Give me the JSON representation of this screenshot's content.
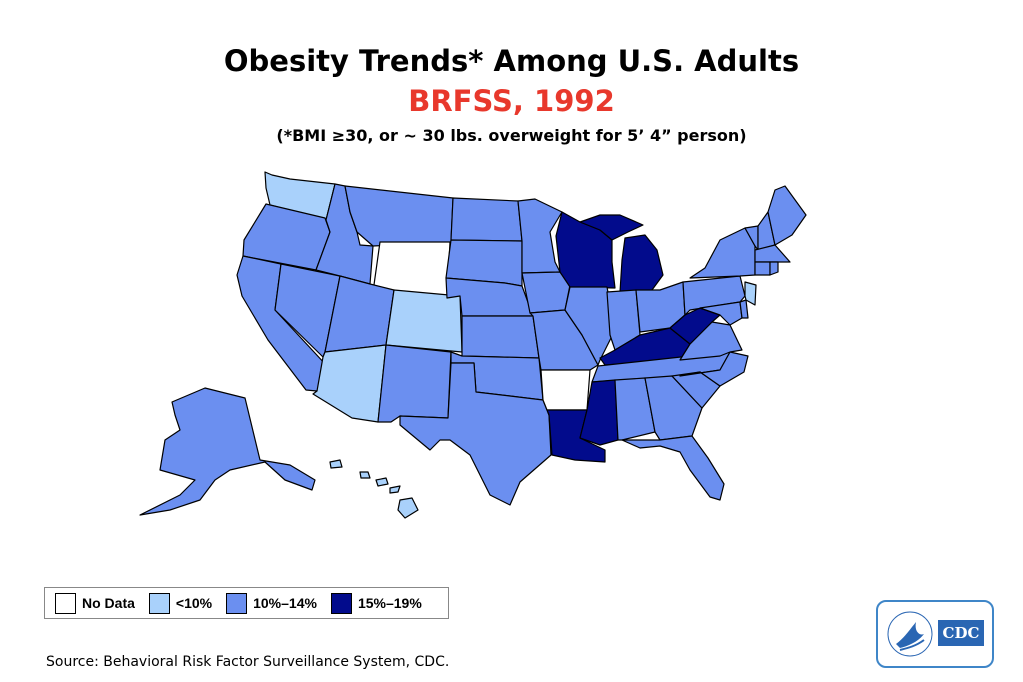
{
  "title": "Obesity Trends* Among U.S. Adults",
  "subtitle": "BRFSS, 1992",
  "note": "(*BMI ≥30, or ~ 30 lbs. overweight for 5’ 4” person)",
  "colors": {
    "no_data": "#ffffff",
    "lt10": "#a9d1fb",
    "c10_14": "#6b8ff0",
    "c15_19": "#020b8c",
    "title_red": "#e8382c",
    "border": "#000000"
  },
  "legend": [
    {
      "key": "no_data",
      "label": "No Data",
      "color": "#ffffff"
    },
    {
      "key": "lt10",
      "label": "<10%",
      "color": "#a9d1fb"
    },
    {
      "key": "c10_14",
      "label": "10%–14%",
      "color": "#6b8ff0"
    },
    {
      "key": "c15_19",
      "label": "15%–19%",
      "color": "#020b8c"
    }
  ],
  "map_data": {
    "states": {
      "WA": "lt10",
      "OR": "c10_14",
      "CA": "c10_14",
      "NV": "c10_14",
      "ID": "c10_14",
      "MT": "c10_14",
      "WY": "no_data",
      "UT": "c10_14",
      "AZ": "lt10",
      "CO": "lt10",
      "NM": "c10_14",
      "ND": "c10_14",
      "SD": "c10_14",
      "NE": "c10_14",
      "KS": "c10_14",
      "OK": "c10_14",
      "TX": "c10_14",
      "MN": "c10_14",
      "IA": "c10_14",
      "MO": "c10_14",
      "AR": "no_data",
      "LA": "c15_19",
      "WI": "c15_19",
      "IL": "c10_14",
      "MI": "c15_19",
      "IN": "c10_14",
      "OH": "c10_14",
      "KY": "c15_19",
      "TN": "c10_14",
      "MS": "c15_19",
      "AL": "c10_14",
      "GA": "c10_14",
      "FL": "c10_14",
      "SC": "c10_14",
      "NC": "c10_14",
      "VA": "c10_14",
      "WV": "c15_19",
      "MD": "c10_14",
      "DE": "c10_14",
      "NJ": "lt10",
      "PA": "c10_14",
      "NY": "c10_14",
      "CT": "c10_14",
      "RI": "c10_14",
      "MA": "c10_14",
      "VT": "c10_14",
      "NH": "c10_14",
      "ME": "c10_14",
      "AK": "c10_14",
      "HI": "lt10"
    }
  },
  "source": "Source: Behavioral Risk Factor Surveillance System, CDC.",
  "logo": {
    "text": "CDC"
  }
}
